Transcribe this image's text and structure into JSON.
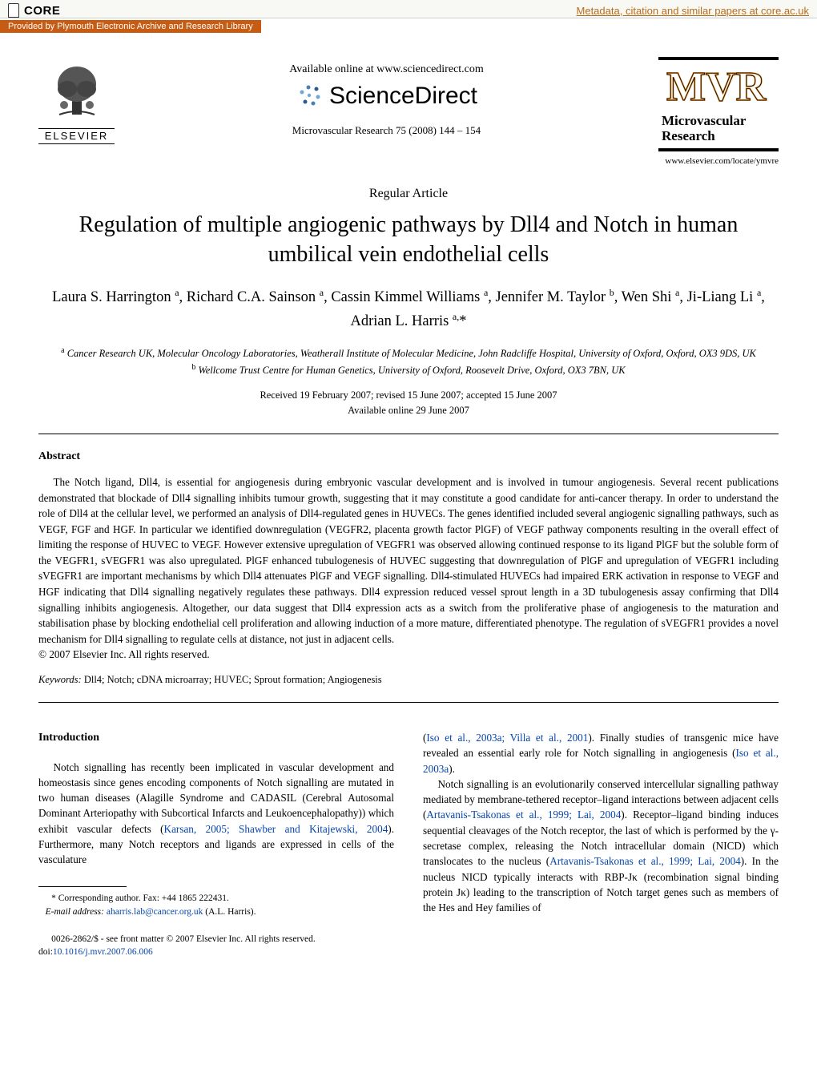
{
  "core_bar": {
    "brand": "CORE",
    "link_text": "Metadata, citation and similar papers at core.ac.uk",
    "provided_by": "Provided by Plymouth Electronic Archive and Research Library"
  },
  "header": {
    "available_online": "Available online at www.sciencedirect.com",
    "sciencedirect": "ScienceDirect",
    "journal_citation": "Microvascular Research 75 (2008) 144 – 154",
    "elsevier_word": "ELSEVIER",
    "journal_name_1": "Microvascular",
    "journal_name_2": "Research",
    "journal_url": "www.elsevier.com/locate/ymvre"
  },
  "article": {
    "section": "Regular Article",
    "title": "Regulation of multiple angiogenic pathways by Dll4 and Notch in human umbilical vein endothelial cells",
    "authors_html": "Laura S. Harrington <sup>a</sup>, Richard C.A. Sainson <sup>a</sup>, Cassin Kimmel Williams <sup>a</sup>, Jennifer M. Taylor <sup>b</sup>, Wen Shi <sup>a</sup>, Ji-Liang Li <sup>a</sup>, Adrian L. Harris <sup>a,</sup>*",
    "affil_a": "Cancer Research UK, Molecular Oncology Laboratories, Weatherall Institute of Molecular Medicine, John Radcliffe Hospital, University of Oxford, Oxford, OX3 9DS, UK",
    "affil_b": "Wellcome Trust Centre for Human Genetics, University of Oxford, Roosevelt Drive, Oxford, OX3 7BN, UK",
    "received": "Received 19 February 2007; revised 15 June 2007; accepted 15 June 2007",
    "online": "Available online 29 June 2007"
  },
  "abstract": {
    "heading": "Abstract",
    "body": "The Notch ligand, Dll4, is essential for angiogenesis during embryonic vascular development and is involved in tumour angiogenesis. Several recent publications demonstrated that blockade of Dll4 signalling inhibits tumour growth, suggesting that it may constitute a good candidate for anti-cancer therapy. In order to understand the role of Dll4 at the cellular level, we performed an analysis of Dll4-regulated genes in HUVECs. The genes identified included several angiogenic signalling pathways, such as VEGF, FGF and HGF. In particular we identified downregulation (VEGFR2, placenta growth factor PlGF) of VEGF pathway components resulting in the overall effect of limiting the response of HUVEC to VEGF. However extensive upregulation of VEGFR1 was observed allowing continued response to its ligand PlGF but the soluble form of the VEGFR1, sVEGFR1 was also upregulated. PlGF enhanced tubulogenesis of HUVEC suggesting that downregulation of PlGF and upregulation of VEGFR1 including sVEGFR1 are important mechanisms by which Dll4 attenuates PlGF and VEGF signalling. Dll4-stimulated HUVECs had impaired ERK activation in response to VEGF and HGF indicating that Dll4 signalling negatively regulates these pathways. Dll4 expression reduced vessel sprout length in a 3D tubulogenesis assay confirming that Dll4 signalling inhibits angiogenesis. Altogether, our data suggest that Dll4 expression acts as a switch from the proliferative phase of angiogenesis to the maturation and stabilisation phase by blocking endothelial cell proliferation and allowing induction of a more mature, differentiated phenotype. The regulation of sVEGFR1 provides a novel mechanism for Dll4 signalling to regulate cells at distance, not just in adjacent cells.",
    "copyright": "© 2007 Elsevier Inc. All rights reserved."
  },
  "keywords": {
    "label": "Keywords:",
    "text": " Dll4; Notch; cDNA microarray; HUVEC; Sprout formation; Angiogenesis"
  },
  "intro": {
    "heading": "Introduction",
    "p1_a": "Notch signalling has recently been implicated in vascular development and homeostasis since genes encoding components of Notch signalling are mutated in two human diseases (Alagille Syndrome and CADASIL (Cerebral Autosomal Dominant Arteriopathy with Subcortical Infarcts and Leukoencephalopathy)) which exhibit vascular defects (",
    "p1_cite1": "Karsan, 2005; Shawber and Kitajewski, 2004",
    "p1_b": "). Furthermore, many Notch receptors and ligands are expressed in cells of the vasculature",
    "p2_a": "(",
    "p2_cite1": "Iso et al., 2003a; Villa et al., 2001",
    "p2_b": "). Finally studies of transgenic mice have revealed an essential early role for Notch signalling in angiogenesis (",
    "p2_cite2": "Iso et al., 2003a",
    "p2_c": ").",
    "p3_a": "Notch signalling is an evolutionarily conserved intercellular signalling pathway mediated by membrane-tethered receptor–ligand interactions between adjacent cells (",
    "p3_cite1": "Artavanis-Tsakonas et al., 1999; Lai, 2004",
    "p3_b": "). Receptor–ligand binding induces sequential cleavages of the Notch receptor, the last of which is performed by the γ-secretase complex, releasing the Notch intracellular domain (NICD) which translocates to the nucleus (",
    "p3_cite2": "Artavanis-Tsakonas et al., 1999; Lai, 2004",
    "p3_c": "). In the nucleus NICD typically interacts with RBP-Jκ (recombination signal binding protein Jκ) leading to the transcription of Notch target genes such as members of the Hes and Hey families of"
  },
  "footnote": {
    "corr": "Corresponding author. Fax: +44 1865 222431.",
    "email_label": "E-mail address:",
    "email": "aharris.lab@cancer.org.uk",
    "email_name": " (A.L. Harris)."
  },
  "footer": {
    "front_matter": "0026-2862/$ - see front matter © 2007 Elsevier Inc. All rights reserved.",
    "doi_label": "doi:",
    "doi": "10.1016/j.mvr.2007.06.006"
  },
  "colors": {
    "core_bg": "#f8f8f4",
    "provided_bg": "#c75b12",
    "link": "#b86d1a",
    "cite": "#0645ad",
    "mvr_orange": "#d98b2e"
  }
}
